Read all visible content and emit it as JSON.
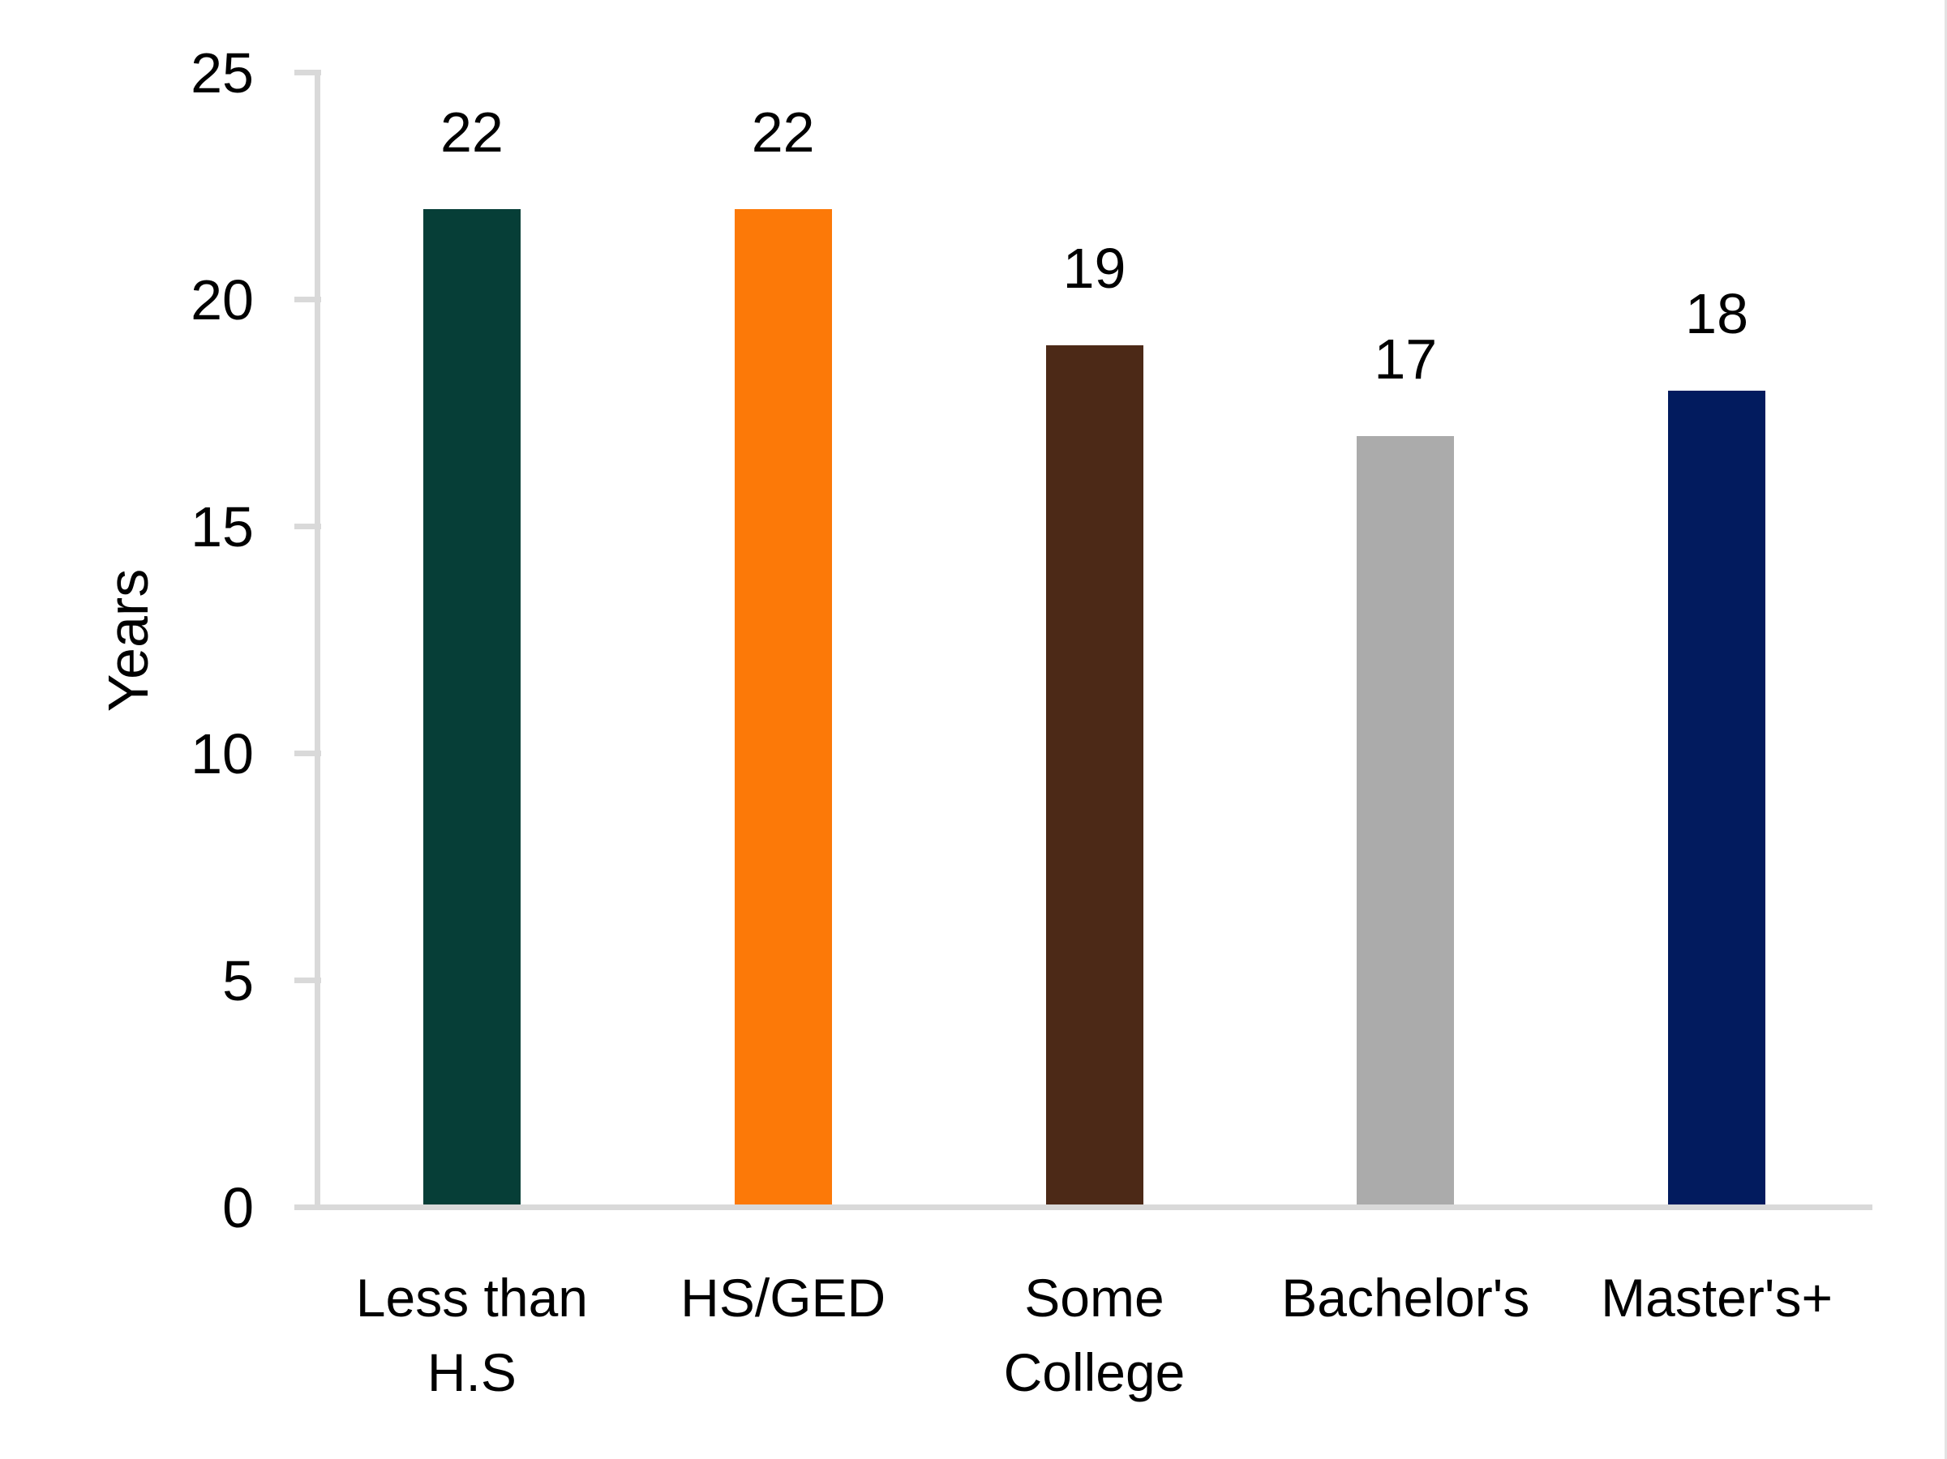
{
  "chart_data": {
    "type": "bar",
    "title": "",
    "ylabel": "Years",
    "xlabel": "",
    "categories": [
      "Less than H.S",
      "HS/GED",
      "Some College",
      "Bachelor's",
      "Master's+"
    ],
    "values": [
      22,
      22,
      19,
      17,
      18
    ],
    "bar_colors": [
      "#063E37",
      "#FC7908",
      "#4C2917",
      "#ABABAB",
      "#021B5E"
    ],
    "y_ticks": [
      0,
      5,
      10,
      15,
      20,
      25
    ],
    "ylim": [
      0,
      25
    ],
    "grid": false,
    "legend": "none",
    "data_labels_shown": true,
    "axis_color": "#D9D9D9",
    "text_color": "#000000",
    "background_color": "#FFFFFF"
  }
}
